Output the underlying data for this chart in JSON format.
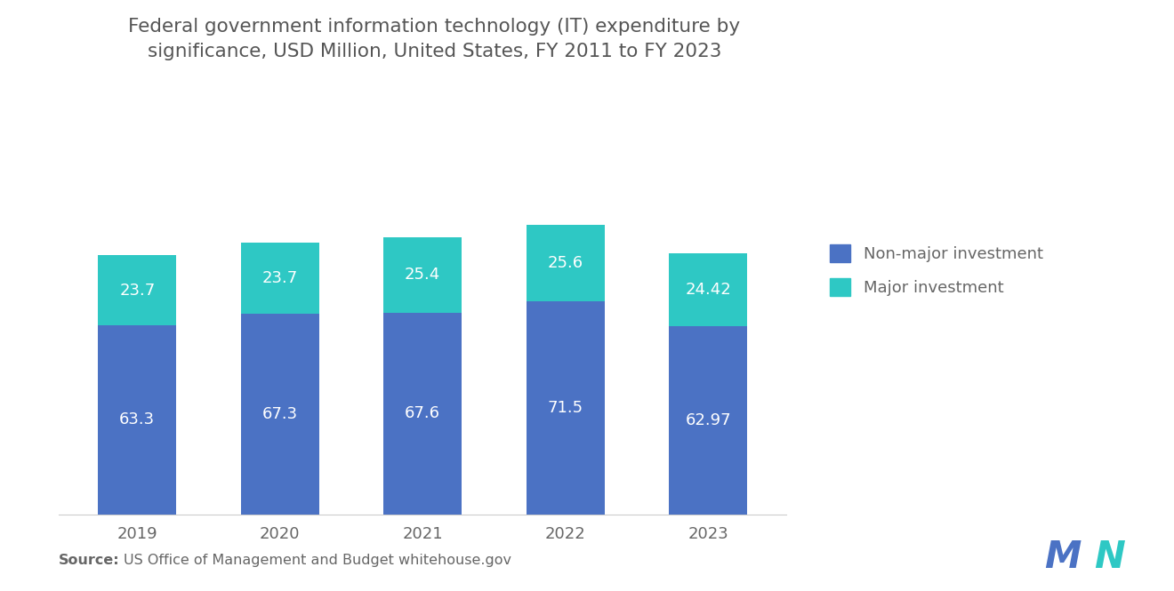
{
  "title_line1": "Federal government information technology (IT) expenditure by",
  "title_line2": "significance, USD Million, United States, FY 2011 to FY 2023",
  "categories": [
    "2019",
    "2020",
    "2021",
    "2022",
    "2023"
  ],
  "non_major": [
    63.3,
    67.3,
    67.6,
    71.5,
    62.97
  ],
  "major": [
    23.7,
    23.7,
    25.4,
    25.6,
    24.42
  ],
  "non_major_color": "#4B72C4",
  "major_color": "#2EC8C4",
  "background_color": "#FFFFFF",
  "bar_width": 0.55,
  "legend_labels": [
    "Non-major investment",
    "Major investment"
  ],
  "source_bold": "Source:",
  "source_text": "US Office of Management and Budget whitehouse.gov",
  "title_fontsize": 15.5,
  "label_fontsize": 13,
  "tick_fontsize": 13,
  "legend_fontsize": 13,
  "source_fontsize": 11.5,
  "ylim": [
    0,
    115
  ],
  "text_color": "#666666",
  "title_color": "#555555"
}
